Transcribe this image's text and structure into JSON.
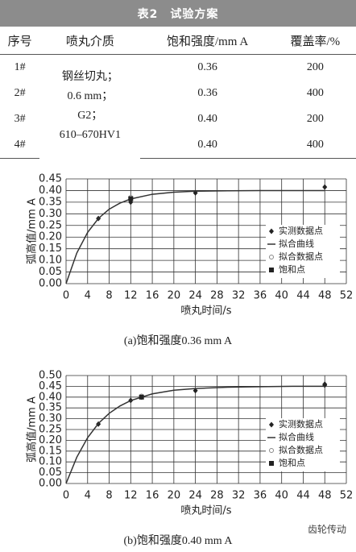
{
  "table": {
    "title": "表2　试验方案",
    "columns": [
      "序号",
      "喷丸介质",
      "饱和强度/mm A",
      "覆盖率/%"
    ],
    "medium": [
      "钢丝切丸；",
      "0.6 mm；",
      "G2；",
      "610–670HV1"
    ],
    "rows": [
      [
        "1#",
        "0.36",
        "200"
      ],
      [
        "2#",
        "0.36",
        "400"
      ],
      [
        "3#",
        "0.40",
        "200"
      ],
      [
        "4#",
        "0.40",
        "400"
      ]
    ]
  },
  "chart_data": [
    {
      "type": "line",
      "caption": "(a)饱和强度0.36 mm A",
      "x_label": "喷丸时间/s",
      "y_label": "弧高值/mm A",
      "xlim": [
        0,
        52
      ],
      "xticks": [
        0,
        4,
        8,
        12,
        16,
        20,
        24,
        28,
        32,
        36,
        40,
        44,
        48,
        52
      ],
      "ylim": [
        0,
        0.45
      ],
      "yticks": [
        {
          "value": 0,
          "label": "0.00"
        },
        0.05,
        {
          "value": 0.1,
          "label": "0.10"
        },
        0.15,
        {
          "value": 0.2,
          "label": "0.20"
        },
        0.25,
        {
          "value": 0.3,
          "label": "0.30"
        },
        0.35,
        {
          "value": 0.4,
          "label": "0.40"
        },
        0.45
      ],
      "grid": true,
      "series": [
        {
          "name": "实测数据点",
          "marker": "diamond",
          "color": "#222222",
          "x": [
            6,
            12,
            12,
            24,
            48
          ],
          "values": [
            0.28,
            0.35,
            0.36,
            0.39,
            0.415
          ]
        },
        {
          "name": "拟合曲线",
          "marker": "line",
          "color": "#333333",
          "x": [
            0,
            2,
            4,
            6,
            8,
            10,
            12,
            16,
            20,
            24,
            30,
            36,
            42,
            48
          ],
          "values": [
            0,
            0.132,
            0.22,
            0.28,
            0.32,
            0.346,
            0.364,
            0.384,
            0.393,
            0.397,
            0.399,
            0.4,
            0.4,
            0.4
          ]
        },
        {
          "name": "拟合数据点",
          "marker": "circle",
          "color": "#888888",
          "x": [
            12
          ],
          "values": [
            0.37
          ]
        },
        {
          "name": "饱和点",
          "marker": "square",
          "color": "#222222",
          "x": [
            12
          ],
          "values": [
            0.365
          ]
        }
      ]
    },
    {
      "type": "line",
      "caption": "(b)饱和强度0.40 mm A",
      "x_label": "喷丸时间/s",
      "y_label": "弧高值/mm A",
      "xlim": [
        0,
        52
      ],
      "xticks": [
        0,
        4,
        8,
        12,
        16,
        20,
        24,
        28,
        32,
        36,
        40,
        44,
        48,
        52
      ],
      "ylim": [
        0,
        0.5
      ],
      "yticks": [
        {
          "value": 0,
          "label": "0.00"
        },
        0.05,
        {
          "value": 0.1,
          "label": "0.10"
        },
        0.15,
        {
          "value": 0.2,
          "label": "0.20"
        },
        0.25,
        {
          "value": 0.3,
          "label": "0.30"
        },
        0.35,
        {
          "value": 0.4,
          "label": "0.40"
        },
        0.45,
        {
          "value": 0.5,
          "label": "0.50"
        }
      ],
      "grid": true,
      "series": [
        {
          "name": "实测数据点",
          "marker": "diamond",
          "color": "#222222",
          "x": [
            6,
            12,
            14,
            24,
            48,
            48
          ],
          "values": [
            0.275,
            0.385,
            0.4,
            0.43,
            0.455,
            0.46
          ]
        },
        {
          "name": "拟合曲线",
          "marker": "line",
          "color": "#333333",
          "x": [
            0,
            2,
            4,
            6,
            8,
            10,
            12,
            16,
            20,
            24,
            30,
            36,
            42,
            48
          ],
          "values": [
            0,
            0.122,
            0.212,
            0.278,
            0.325,
            0.359,
            0.384,
            0.415,
            0.432,
            0.44,
            0.446,
            0.448,
            0.45,
            0.45
          ]
        },
        {
          "name": "拟合数据点",
          "marker": "circle",
          "color": "#888888",
          "x": [
            14
          ],
          "values": [
            0.405
          ]
        },
        {
          "name": "饱和点",
          "marker": "square",
          "color": "#222222",
          "x": [
            14
          ],
          "values": [
            0.4
          ]
        }
      ]
    }
  ],
  "watermark": "齿轮传动"
}
